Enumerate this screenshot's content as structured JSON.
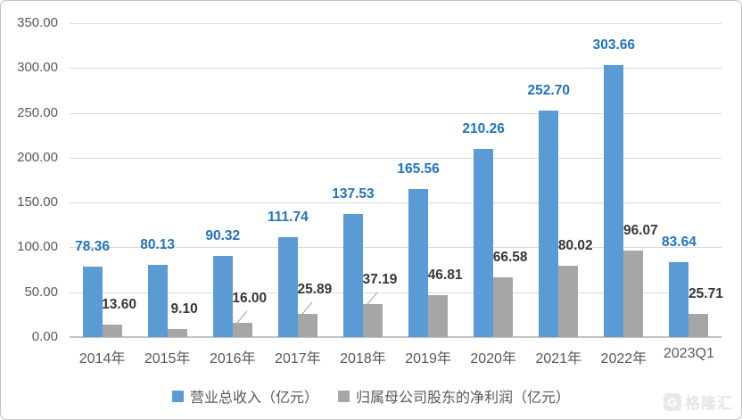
{
  "chart_data": {
    "type": "bar",
    "categories": [
      "2014年",
      "2015年",
      "2016年",
      "2017年",
      "2018年",
      "2019年",
      "2020年",
      "2021年",
      "2022年",
      "2023Q1"
    ],
    "series": [
      {
        "name": "营业总收入（亿元）",
        "values": [
          78.36,
          80.13,
          90.32,
          111.74,
          137.53,
          165.56,
          210.26,
          252.7,
          303.66,
          83.64
        ],
        "labels": [
          "78.36",
          "80.13",
          "90.32",
          "111.74",
          "137.53",
          "165.56",
          "210.26",
          "252.70",
          "303.66",
          "83.64"
        ],
        "color": "#5B9BD5",
        "label_color": "#2173BE"
      },
      {
        "name": "归属母公司股东的净利润（亿元）",
        "values": [
          13.6,
          9.1,
          16.0,
          25.89,
          37.19,
          46.81,
          66.58,
          80.02,
          96.07,
          25.71
        ],
        "labels": [
          "13.60",
          "9.10",
          "16.00",
          "25.89",
          "37.19",
          "46.81",
          "66.58",
          "80.02",
          "96.07",
          "25.71"
        ],
        "color": "#A6A6A6",
        "label_color": "#373737",
        "leader_line_indices": [
          2,
          3,
          4
        ]
      }
    ],
    "ylim": [
      0,
      350
    ],
    "ytick_labels": [
      "350.00",
      "300.00",
      "250.00",
      "200.00",
      "150.00",
      "100.00",
      "50.00",
      "0.00"
    ],
    "grid": true,
    "legend_position": "bottom"
  },
  "watermark": {
    "icon": "G",
    "brand": "格隆汇"
  },
  "colors": {
    "bar_blue": "#5B9BD5",
    "bar_gray": "#A6A6A6",
    "label_blue": "#2173BE",
    "label_dark": "#373737",
    "axis_text": "#595959",
    "gridline": "#D9D9D9",
    "axis_line": "#C3C3C3",
    "frame_border": "#C6C6C6"
  }
}
